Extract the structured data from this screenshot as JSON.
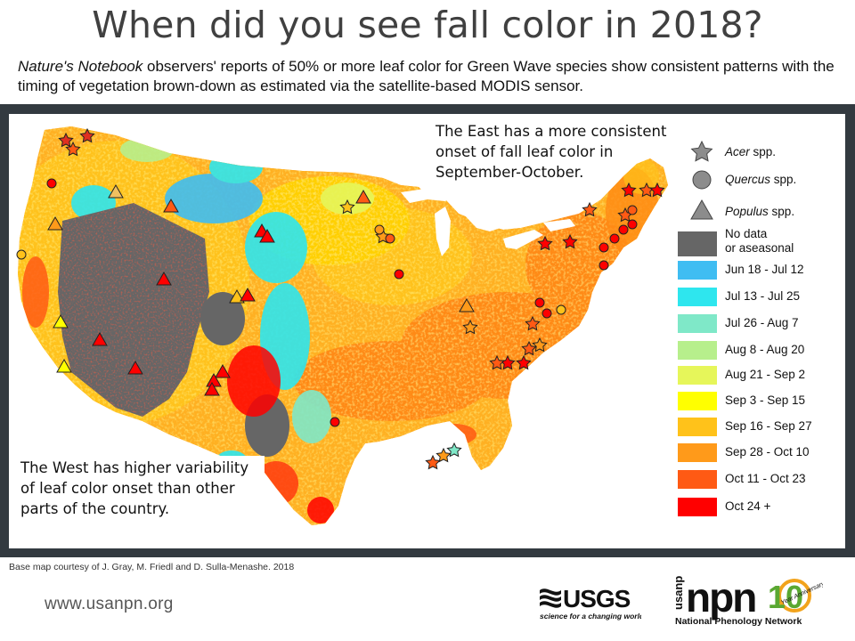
{
  "title": "When did you see fall color in 2018?",
  "subtitle": {
    "italic_part": "Nature's Notebook",
    "rest": " observers'  reports of 50% or more leaf color for Green Wave species show consistent patterns with the timing of vegetation brown-down as estimated via the satellite-based MODIS sensor."
  },
  "east_note": "The East has a more consistent onset of fall leaf color in September-October.",
  "west_note": "The West has higher variability of leaf color onset than other parts of the country.",
  "legend": {
    "species": [
      {
        "symbol": "star",
        "genus": "Acer",
        "suffix": " spp.",
        "color": "#8c8c8c"
      },
      {
        "symbol": "circle",
        "genus": "Quercus",
        "suffix": " spp.",
        "color": "#8c8c8c"
      },
      {
        "symbol": "triangle",
        "genus": "Populus",
        "suffix": " spp.",
        "color": "#8c8c8c"
      }
    ],
    "classes": [
      {
        "label": "No data\nor aseasonal",
        "color": "#666666"
      },
      {
        "label": "Jun 18 - Jul 12",
        "color": "#3fbdf2"
      },
      {
        "label": "Jul 13 - Jul 25",
        "color": "#2ee6ee"
      },
      {
        "label": "Jul 26 - Aug 7",
        "color": "#7fe8c8"
      },
      {
        "label": "Aug 8 - Aug 20",
        "color": "#b7ef8c"
      },
      {
        "label": "Aug 21 - Sep 2",
        "color": "#e6f65a"
      },
      {
        "label": "Sep 3 - Sep 15",
        "color": "#ffff00"
      },
      {
        "label": "Sep 16 - Sep 27",
        "color": "#ffc21a"
      },
      {
        "label": "Sep 28 - Oct 10",
        "color": "#ff9a1a"
      },
      {
        "label": "Oct 11 - Oct 23",
        "color": "#ff5a14"
      },
      {
        "label": "Oct 24 +",
        "color": "#ff0000"
      }
    ]
  },
  "credit": "Base map courtesy of J. Gray, M. Friedl and D. Sulla-Menashe.  2018",
  "url": "www.usanpn.org",
  "logos": {
    "usgs_name": "USGS",
    "usgs_tagline": "science for a changing world",
    "npn_name": "usanpn",
    "npn_years": "10",
    "npn_anniv": "Year Anniversary",
    "npn_full": "National Phenology Network"
  }
}
